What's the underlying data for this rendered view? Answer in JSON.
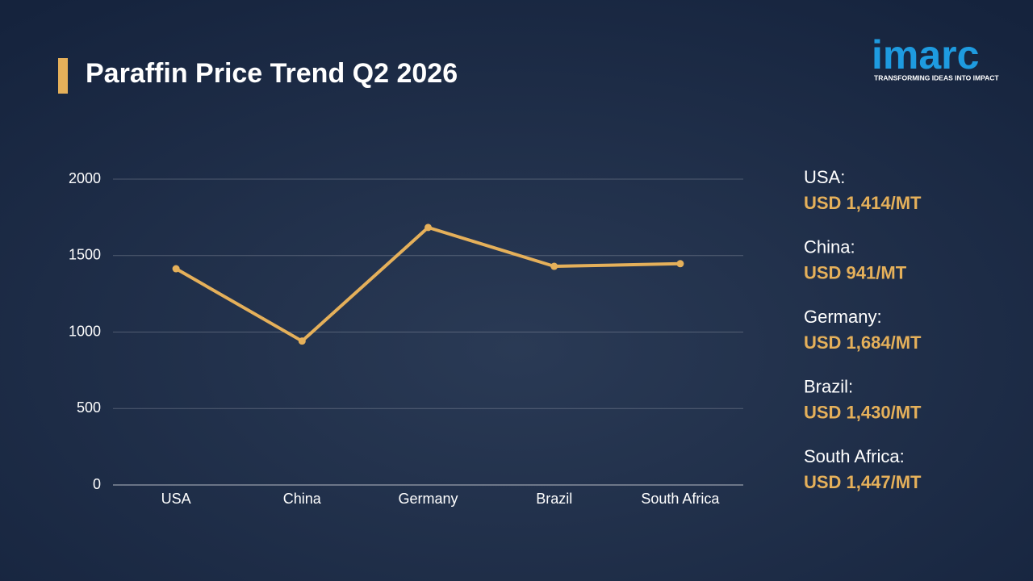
{
  "chart_data": {
    "type": "line",
    "title": "Paraffin Price Trend Q2 2026",
    "categories": [
      "USA",
      "China",
      "Germany",
      "Brazil",
      "South Africa"
    ],
    "series": [
      {
        "name": "Paraffin price",
        "color": "#e5b05a",
        "values": [
          1414,
          941,
          1684,
          1430,
          1447
        ],
        "value_labels": [
          "USD 1,414/MT",
          "USD 941/MT",
          "USD 1,684/MT",
          "USD 1,430/MT",
          "USD 1,447/MT"
        ]
      }
    ],
    "summary_labels": [
      "USA:",
      "China:",
      "Germany:",
      "Brazil:",
      "South Africa:"
    ],
    "ylim": [
      0,
      2000
    ],
    "yticks": [
      0,
      500,
      1000,
      1500,
      2000
    ],
    "grid": true
  },
  "logo": {
    "name": "imarc",
    "tagline": "TRANSFORMING IDEAS INTO IMPACT"
  }
}
